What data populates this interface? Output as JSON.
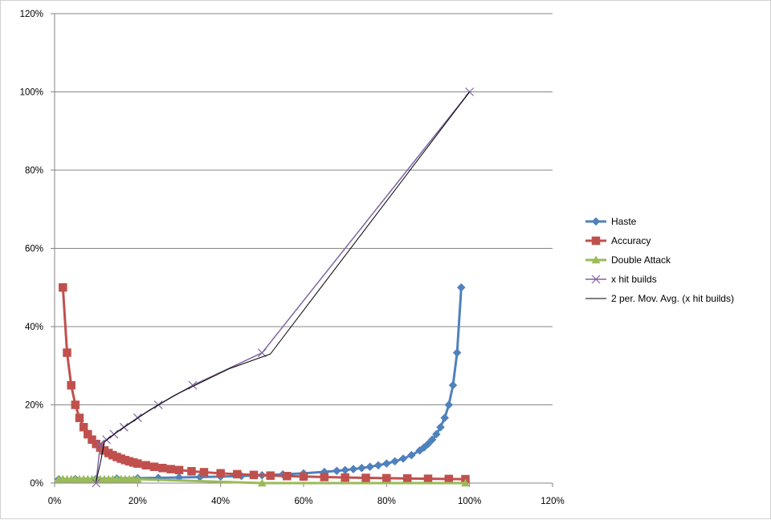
{
  "chart_data": {
    "type": "scatter",
    "title": "",
    "xlabel": "",
    "ylabel": "",
    "xlim": [
      0,
      1.2
    ],
    "ylim": [
      0,
      1.2
    ],
    "x_ticks": [
      0,
      0.2,
      0.4,
      0.6,
      0.8,
      1.0,
      1.2
    ],
    "y_ticks": [
      0,
      0.2,
      0.4,
      0.6,
      0.8,
      1.0,
      1.2
    ],
    "x_tick_labels": [
      "0%",
      "20%",
      "40%",
      "60%",
      "80%",
      "100%",
      "120%"
    ],
    "y_tick_labels": [
      "0%",
      "20%",
      "40%",
      "60%",
      "80%",
      "100%",
      "120%"
    ],
    "grid": "horizontal",
    "legend_position": "right",
    "series": [
      {
        "name": "Haste",
        "color": "#4F81BD",
        "marker": "diamond",
        "points": [
          [
            0.01,
            0.0101
          ],
          [
            0.05,
            0.0105
          ],
          [
            0.1,
            0.0111
          ],
          [
            0.15,
            0.0118
          ],
          [
            0.2,
            0.0125
          ],
          [
            0.25,
            0.0133
          ],
          [
            0.3,
            0.0143
          ],
          [
            0.35,
            0.0154
          ],
          [
            0.4,
            0.0167
          ],
          [
            0.45,
            0.0182
          ],
          [
            0.5,
            0.02
          ],
          [
            0.55,
            0.0222
          ],
          [
            0.6,
            0.025
          ],
          [
            0.65,
            0.0286
          ],
          [
            0.68,
            0.0313
          ],
          [
            0.7,
            0.0333
          ],
          [
            0.72,
            0.0357
          ],
          [
            0.74,
            0.0385
          ],
          [
            0.76,
            0.0417
          ],
          [
            0.78,
            0.0455
          ],
          [
            0.8,
            0.05
          ],
          [
            0.82,
            0.0556
          ],
          [
            0.84,
            0.0625
          ],
          [
            0.86,
            0.0714
          ],
          [
            0.88,
            0.0833
          ],
          [
            0.89,
            0.0909
          ],
          [
            0.9,
            0.1
          ],
          [
            0.91,
            0.1111
          ],
          [
            0.92,
            0.125
          ],
          [
            0.93,
            0.1429
          ],
          [
            0.94,
            0.1667
          ],
          [
            0.95,
            0.2
          ],
          [
            0.96,
            0.25
          ],
          [
            0.97,
            0.3333
          ],
          [
            0.98,
            0.5
          ]
        ]
      },
      {
        "name": "Accuracy",
        "color": "#C0504D",
        "marker": "square",
        "points": [
          [
            0.02,
            0.5
          ],
          [
            0.03,
            0.3333
          ],
          [
            0.04,
            0.25
          ],
          [
            0.05,
            0.2
          ],
          [
            0.06,
            0.1667
          ],
          [
            0.07,
            0.1429
          ],
          [
            0.08,
            0.125
          ],
          [
            0.09,
            0.1111
          ],
          [
            0.1,
            0.1
          ],
          [
            0.11,
            0.0909
          ],
          [
            0.12,
            0.0833
          ],
          [
            0.13,
            0.0769
          ],
          [
            0.14,
            0.0714
          ],
          [
            0.15,
            0.0667
          ],
          [
            0.16,
            0.0625
          ],
          [
            0.17,
            0.0588
          ],
          [
            0.18,
            0.0556
          ],
          [
            0.19,
            0.0526
          ],
          [
            0.2,
            0.05
          ],
          [
            0.22,
            0.0455
          ],
          [
            0.24,
            0.0417
          ],
          [
            0.26,
            0.0385
          ],
          [
            0.28,
            0.0357
          ],
          [
            0.3,
            0.0333
          ],
          [
            0.33,
            0.0303
          ],
          [
            0.36,
            0.0278
          ],
          [
            0.4,
            0.025
          ],
          [
            0.44,
            0.0227
          ],
          [
            0.48,
            0.0208
          ],
          [
            0.52,
            0.0192
          ],
          [
            0.56,
            0.0179
          ],
          [
            0.6,
            0.0167
          ],
          [
            0.65,
            0.0154
          ],
          [
            0.7,
            0.0143
          ],
          [
            0.75,
            0.0133
          ],
          [
            0.8,
            0.0125
          ],
          [
            0.85,
            0.0118
          ],
          [
            0.9,
            0.0111
          ],
          [
            0.95,
            0.0105
          ],
          [
            0.99,
            0.0101
          ]
        ]
      },
      {
        "name": "Double Attack",
        "color": "#9BBB59",
        "marker": "triangle",
        "points": [
          [
            0.01,
            0.01
          ],
          [
            0.02,
            0.01
          ],
          [
            0.03,
            0.01
          ],
          [
            0.04,
            0.01
          ],
          [
            0.05,
            0.01
          ],
          [
            0.06,
            0.01
          ],
          [
            0.07,
            0.01
          ],
          [
            0.08,
            0.01
          ],
          [
            0.09,
            0.01
          ],
          [
            0.1,
            0.01
          ],
          [
            0.11,
            0.01
          ],
          [
            0.12,
            0.01
          ],
          [
            0.13,
            0.01
          ],
          [
            0.14,
            0.01
          ],
          [
            0.15,
            0.01
          ],
          [
            0.16,
            0.01
          ],
          [
            0.17,
            0.01
          ],
          [
            0.18,
            0.01
          ],
          [
            0.19,
            0.01
          ],
          [
            0.2,
            0.01
          ],
          [
            0.5,
            0.0
          ],
          [
            0.99,
            0.0
          ]
        ]
      },
      {
        "name": "x hit builds",
        "color": "#8064A2",
        "marker": "x",
        "points": [
          [
            0.1,
            0.0
          ],
          [
            0.11,
            0.1
          ],
          [
            0.125,
            0.111
          ],
          [
            0.143,
            0.125
          ],
          [
            0.167,
            0.143
          ],
          [
            0.2,
            0.167
          ],
          [
            0.25,
            0.2
          ],
          [
            0.333,
            0.25
          ],
          [
            0.5,
            0.333
          ],
          [
            1.0,
            1.0
          ]
        ]
      },
      {
        "name": "2 per. Mov. Avg. (x hit builds)",
        "color": "#000000",
        "marker": "none",
        "points": [
          [
            0.1,
            0.005
          ],
          [
            0.11,
            0.05
          ],
          [
            0.12,
            0.105
          ],
          [
            0.135,
            0.118
          ],
          [
            0.155,
            0.134
          ],
          [
            0.185,
            0.155
          ],
          [
            0.225,
            0.184
          ],
          [
            0.29,
            0.225
          ],
          [
            0.42,
            0.292
          ],
          [
            0.52,
            0.33
          ],
          [
            1.0,
            1.0
          ]
        ]
      }
    ]
  }
}
